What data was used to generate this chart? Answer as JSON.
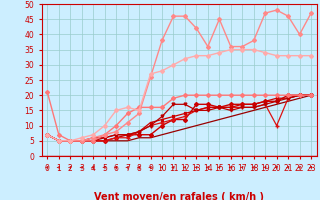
{
  "title": "",
  "xlabel": "Vent moyen/en rafales ( km/h )",
  "background_color": "#cceeff",
  "grid_color": "#99cccc",
  "xlim": [
    -0.5,
    23.5
  ],
  "ylim": [
    0,
    50
  ],
  "yticks": [
    0,
    5,
    10,
    15,
    20,
    25,
    30,
    35,
    40,
    45,
    50
  ],
  "xticks": [
    0,
    1,
    2,
    3,
    4,
    5,
    6,
    7,
    8,
    9,
    10,
    11,
    12,
    13,
    14,
    15,
    16,
    17,
    18,
    19,
    20,
    21,
    22,
    23
  ],
  "series": [
    {
      "x": [
        0,
        1,
        2,
        3,
        4,
        5,
        6,
        7,
        8,
        9,
        10,
        11,
        12,
        13,
        14,
        15,
        16,
        17,
        18,
        19,
        20,
        21,
        22,
        23
      ],
      "y": [
        7,
        5,
        5,
        5,
        5,
        5,
        5,
        5,
        6,
        6,
        7,
        8,
        9,
        10,
        11,
        12,
        13,
        14,
        15,
        16,
        17,
        18,
        19,
        20
      ],
      "color": "#990000",
      "lw": 0.9,
      "marker": null,
      "ms": 0
    },
    {
      "x": [
        0,
        1,
        2,
        3,
        4,
        5,
        6,
        7,
        8,
        9,
        10,
        11,
        12,
        13,
        14,
        15,
        16,
        17,
        18,
        19,
        20,
        21,
        22,
        23
      ],
      "y": [
        7,
        5,
        5,
        5,
        5,
        5,
        6,
        7,
        7,
        7,
        10,
        12,
        12,
        17,
        17,
        16,
        17,
        17,
        17,
        18,
        18,
        20,
        20,
        20
      ],
      "color": "#cc0000",
      "lw": 1.0,
      "marker": "D",
      "ms": 2.0
    },
    {
      "x": [
        0,
        1,
        2,
        3,
        4,
        5,
        6,
        7,
        8,
        9,
        10,
        11,
        12,
        13,
        14,
        15,
        16,
        17,
        18,
        19,
        20,
        21,
        22,
        23
      ],
      "y": [
        7,
        5,
        5,
        5,
        5,
        5,
        6,
        6,
        8,
        10,
        11,
        12,
        13,
        15,
        16,
        16,
        16,
        16,
        16,
        17,
        10,
        19,
        20,
        20
      ],
      "color": "#dd1111",
      "lw": 0.9,
      "marker": "+",
      "ms": 2.5
    },
    {
      "x": [
        0,
        1,
        2,
        3,
        4,
        5,
        6,
        7,
        8,
        9,
        10,
        11,
        12,
        13,
        14,
        15,
        16,
        17,
        18,
        19,
        20,
        21,
        22,
        23
      ],
      "y": [
        7,
        5,
        5,
        5,
        6,
        6,
        7,
        7,
        8,
        11,
        12,
        13,
        14,
        15,
        16,
        16,
        16,
        17,
        17,
        18,
        19,
        19,
        20,
        20
      ],
      "color": "#cc0000",
      "lw": 0.9,
      "marker": "x",
      "ms": 2.0
    },
    {
      "x": [
        0,
        1,
        2,
        3,
        4,
        5,
        6,
        7,
        8,
        9,
        10,
        11,
        12,
        13,
        14,
        15,
        16,
        17,
        18,
        19,
        20,
        21,
        22,
        23
      ],
      "y": [
        7,
        5,
        5,
        5,
        5,
        6,
        7,
        7,
        8,
        10,
        13,
        17,
        17,
        15,
        15,
        16,
        15,
        16,
        16,
        17,
        18,
        19,
        20,
        20
      ],
      "color": "#bb0000",
      "lw": 0.9,
      "marker": "v",
      "ms": 2.0
    },
    {
      "x": [
        0,
        1,
        2,
        3,
        4,
        5,
        6,
        7,
        8,
        9,
        10,
        11,
        12,
        13,
        14,
        15,
        16,
        17,
        18,
        19,
        20,
        21,
        22,
        23
      ],
      "y": [
        21,
        7,
        5,
        5,
        5,
        7,
        10,
        14,
        16,
        16,
        16,
        19,
        20,
        20,
        20,
        20,
        20,
        20,
        20,
        20,
        20,
        20,
        20,
        20
      ],
      "color": "#ff7777",
      "lw": 1.0,
      "marker": "D",
      "ms": 2.0
    },
    {
      "x": [
        0,
        1,
        2,
        3,
        4,
        5,
        6,
        7,
        8,
        9,
        10,
        11,
        12,
        13,
        14,
        15,
        16,
        17,
        18,
        19,
        20,
        21,
        22,
        23
      ],
      "y": [
        7,
        5,
        5,
        5,
        6,
        7,
        8,
        11,
        14,
        26,
        38,
        46,
        46,
        42,
        36,
        45,
        36,
        36,
        38,
        47,
        48,
        46,
        40,
        47
      ],
      "color": "#ff8888",
      "lw": 1.0,
      "marker": "D",
      "ms": 2.0
    },
    {
      "x": [
        0,
        1,
        2,
        3,
        4,
        5,
        6,
        7,
        8,
        9,
        10,
        11,
        12,
        13,
        14,
        15,
        16,
        17,
        18,
        19,
        20,
        21,
        22,
        23
      ],
      "y": [
        7,
        5,
        5,
        6,
        7,
        10,
        15,
        16,
        15,
        27,
        28,
        30,
        32,
        33,
        33,
        34,
        35,
        35,
        35,
        34,
        33,
        33,
        33,
        33
      ],
      "color": "#ffaaaa",
      "lw": 1.0,
      "marker": "D",
      "ms": 2.0
    }
  ],
  "xlabel_color": "#cc0000",
  "xlabel_fontsize": 7,
  "tick_fontsize": 5.5,
  "tick_color": "#cc0000",
  "arrow_color": "#cc0000"
}
